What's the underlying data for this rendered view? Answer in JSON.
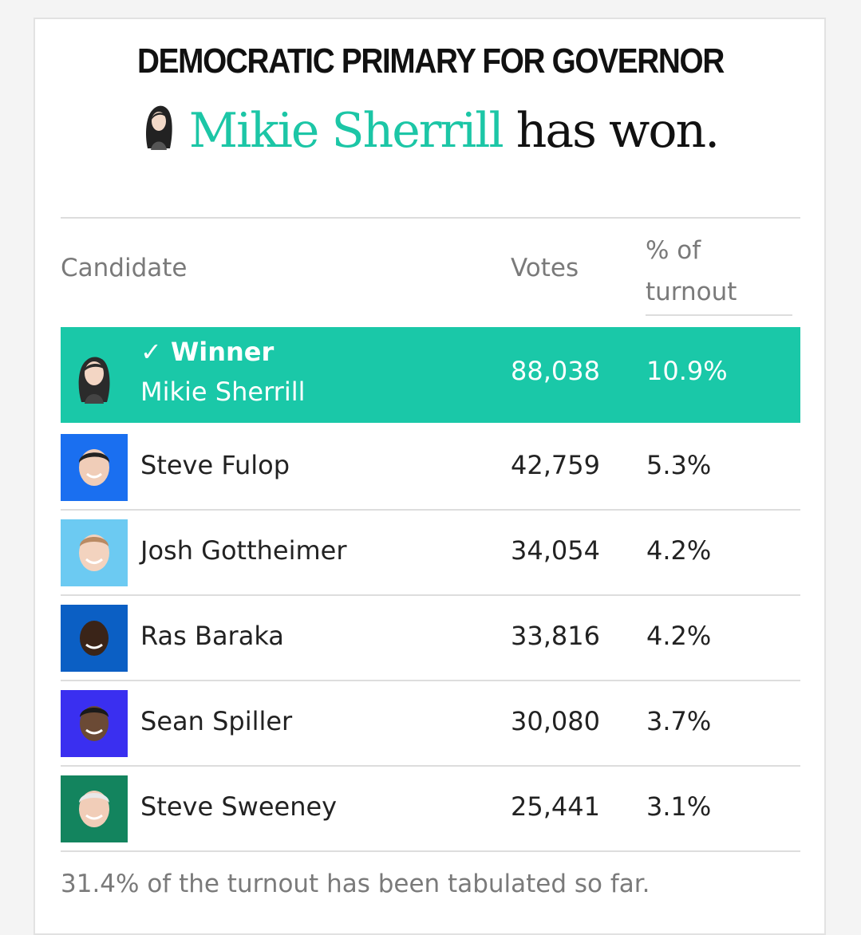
{
  "race": {
    "heading": "DEMOCRATIC PRIMARY FOR GOVERNOR",
    "winner_name": "Mikie Sherrill",
    "won_text": "has won."
  },
  "table": {
    "headers": {
      "candidate": "Candidate",
      "votes": "Votes",
      "pct_line1": "% of",
      "pct_line2": "turnout"
    },
    "winner_label": "✓ Winner",
    "rows": [
      {
        "name": "Mikie Sherrill",
        "votes": "88,038",
        "pct": "10.9%",
        "winner": true,
        "avatar_color": "#1ac8a8"
      },
      {
        "name": "Steve Fulop",
        "votes": "42,759",
        "pct": "5.3%",
        "winner": false,
        "avatar_color": "#1a6ff0"
      },
      {
        "name": "Josh Gottheimer",
        "votes": "34,054",
        "pct": "4.2%",
        "winner": false,
        "avatar_color": "#6ccaf2"
      },
      {
        "name": "Ras Baraka",
        "votes": "33,816",
        "pct": "4.2%",
        "winner": false,
        "avatar_color": "#0b5fc4"
      },
      {
        "name": "Sean Spiller",
        "votes": "30,080",
        "pct": "3.7%",
        "winner": false,
        "avatar_color": "#3a2ff0"
      },
      {
        "name": "Steve Sweeney",
        "votes": "25,441",
        "pct": "3.1%",
        "winner": false,
        "avatar_color": "#13845e"
      }
    ]
  },
  "footer": {
    "note": "31.4% of the turnout has been tabulated so far."
  },
  "colors": {
    "accent": "#1cc6a6",
    "winner_row": "#1ac8a8"
  }
}
